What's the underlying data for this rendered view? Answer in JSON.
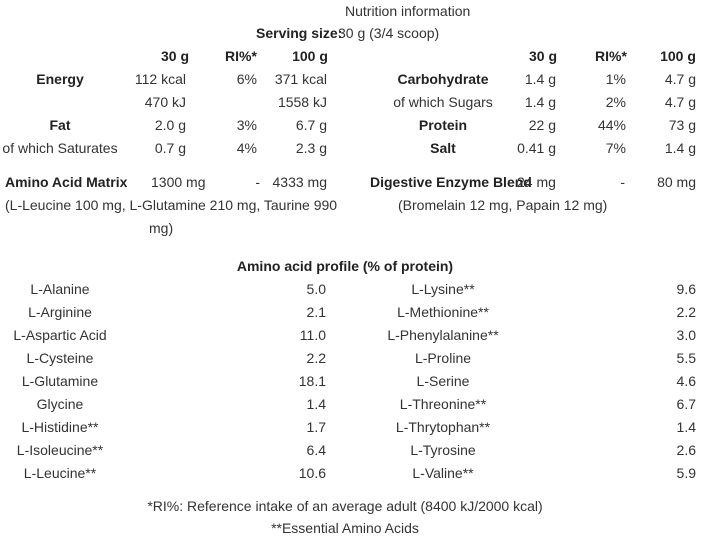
{
  "header": {
    "title": "Nutrition information",
    "serving_label": "Serving size:",
    "serving_value": "30 g (3/4 scoop)"
  },
  "columns": {
    "per_serving": "30 g",
    "ri": "RI%*",
    "per_100": "100 g"
  },
  "left_table": [
    {
      "label": "Energy",
      "bold": true,
      "serving": "112 kcal",
      "ri": "6%",
      "per100": "371 kcal"
    },
    {
      "label": "",
      "bold": false,
      "serving": "470 kJ",
      "ri": "",
      "per100": "1558 kJ"
    },
    {
      "label": "Fat",
      "bold": true,
      "serving": "2.0 g",
      "ri": "3%",
      "per100": "6.7 g"
    },
    {
      "label": "of which Saturates",
      "bold": false,
      "serving": "0.7 g",
      "ri": "4%",
      "per100": "2.3 g"
    }
  ],
  "right_table": [
    {
      "label": "Carbohydrate",
      "bold": true,
      "serving": "1.4 g",
      "ri": "1%",
      "per100": "4.7 g"
    },
    {
      "label": "of which Sugars",
      "bold": false,
      "serving": "1.4 g",
      "ri": "2%",
      "per100": "4.7 g"
    },
    {
      "label": "Protein",
      "bold": true,
      "serving": "22 g",
      "ri": "44%",
      "per100": "73 g"
    },
    {
      "label": "Salt",
      "bold": true,
      "serving": "0.41 g",
      "ri": "7%",
      "per100": "1.4 g"
    }
  ],
  "amino_matrix": {
    "label": "Amino Acid Matrix",
    "serving": "1300 mg",
    "ri": "-",
    "per100": "4333 mg",
    "detail_line1": "(L-Leucine 100 mg, L-Glutamine 210 mg, Taurine 990",
    "detail_line2": "mg)"
  },
  "enzyme_blend": {
    "label": "Digestive Enzyme Blend",
    "serving": "24 mg",
    "ri": "-",
    "per100": "80 mg",
    "detail": "(Bromelain 12 mg, Papain 12 mg)"
  },
  "amino_profile": {
    "title": "Amino acid profile (% of protein)",
    "left": [
      {
        "name": "L-Alanine",
        "value": "5.0"
      },
      {
        "name": "L-Arginine",
        "value": "2.1"
      },
      {
        "name": "L-Aspartic Acid",
        "value": "11.0"
      },
      {
        "name": "L-Cysteine",
        "value": "2.2"
      },
      {
        "name": "L-Glutamine",
        "value": "18.1"
      },
      {
        "name": "Glycine",
        "value": "1.4"
      },
      {
        "name": "L-Histidine**",
        "value": "1.7"
      },
      {
        "name": "L-Isoleucine**",
        "value": "6.4"
      },
      {
        "name": "L-Leucine**",
        "value": "10.6"
      }
    ],
    "right": [
      {
        "name": "L-Lysine**",
        "value": "9.6"
      },
      {
        "name": "L-Methionine**",
        "value": "2.2"
      },
      {
        "name": "L-Phenylalanine**",
        "value": "3.0"
      },
      {
        "name": "L-Proline",
        "value": "5.5"
      },
      {
        "name": "L-Serine",
        "value": "4.6"
      },
      {
        "name": "L-Threonine**",
        "value": "6.7"
      },
      {
        "name": "L-Thrytophan**",
        "value": "1.4"
      },
      {
        "name": "L-Tyrosine",
        "value": "2.6"
      },
      {
        "name": "L-Valine**",
        "value": "5.9"
      }
    ]
  },
  "footnotes": {
    "ri_note": "*RI%: Reference intake of an average adult (8400 kJ/2000 kcal)",
    "essential_note": "**Essential Amino Acids"
  }
}
